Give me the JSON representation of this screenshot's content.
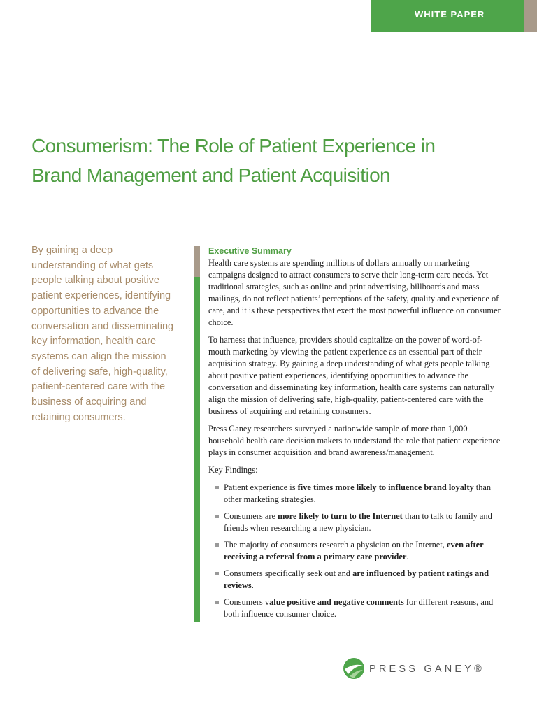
{
  "header": {
    "badge": "WHITE PAPER"
  },
  "title": [
    "Consumerism: The Role of Patient Experience in",
    "Brand Management and Patient Acquisition"
  ],
  "sidebar": {
    "quote": "By gaining a deep understanding of what gets people talking about positive patient experiences, identifying opportunities to advance the conversation and disseminating key information, health care systems can align the mission of delivering safe, high-quality, patient-centered care with the business of acquiring and retaining consumers."
  },
  "summary": {
    "heading": "Executive Summary",
    "paragraphs": [
      "Health care systems are spending millions of dollars annually on marketing campaigns designed to attract consumers to serve their long-term care needs. Yet traditional strategies, such as online and print advertising, billboards and mass mailings, do not reflect patients’ perceptions of the safety, quality and experience of care, and it is these perspectives that exert the most powerful influence on consumer choice.",
      "To harness that influence, providers should capitalize on the power of word-of-mouth marketing by viewing the patient experience as an essential part of their acquisition strategy. By gaining a deep understanding of what gets people talking about positive patient experiences, identifying opportunities to advance the conversation and disseminating key information, health care systems can naturally align the mission of delivering safe, high-quality, patient-centered care with the business of acquiring and retaining consumers.",
      "Press Ganey researchers surveyed a nationwide sample of more than 1,000 household health care decision makers to understand the role that patient experience plays in consumer acquisition and brand awareness/management."
    ],
    "findings_label": "Key Findings:",
    "findings": [
      [
        {
          "text": "Patient experience is ",
          "bold": false
        },
        {
          "text": "five times more likely to influence brand loyalty",
          "bold": true
        },
        {
          "text": " than other marketing strategies.",
          "bold": false
        }
      ],
      [
        {
          "text": "Consumers are ",
          "bold": false
        },
        {
          "text": "more likely to turn to the Internet",
          "bold": true
        },
        {
          "text": " than to talk to family and friends when researching a new physician.",
          "bold": false
        }
      ],
      [
        {
          "text": "The majority of consumers research a physician on the Internet, ",
          "bold": false
        },
        {
          "text": "even after receiving a referral from a primary care provider",
          "bold": true
        },
        {
          "text": ".",
          "bold": false
        }
      ],
      [
        {
          "text": "Consumers specifically seek out and ",
          "bold": false
        },
        {
          "text": "are influenced by patient ratings and reviews",
          "bold": true
        },
        {
          "text": ".",
          "bold": false
        }
      ],
      [
        {
          "text": "Consumers v",
          "bold": false
        },
        {
          "text": "alue positive and negative comments",
          "bold": true
        },
        {
          "text": " for different reasons, and both influence consumer choice.",
          "bold": false
        }
      ]
    ]
  },
  "footer": {
    "logo": "PRESS GANEY®"
  }
}
